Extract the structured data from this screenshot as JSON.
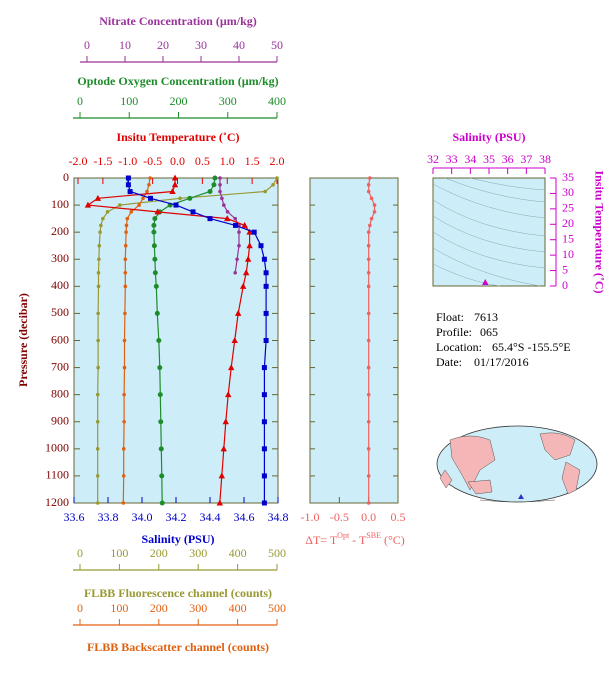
{
  "chart_data": [
    {
      "type": "line",
      "ylabel": "Pressure (decibar)",
      "ylim": [
        0,
        1200
      ],
      "yticks": [
        0,
        100,
        200,
        300,
        400,
        500,
        600,
        700,
        800,
        900,
        1000,
        1100,
        1200
      ],
      "y": [
        0,
        25,
        50,
        75,
        100,
        125,
        150,
        175,
        200,
        250,
        300,
        350,
        400,
        500,
        600,
        700,
        800,
        900,
        1000,
        1100,
        1200
      ],
      "x_axes": [
        {
          "label": "Nitrate Concentration (µm/kg)",
          "color": "#993399",
          "xlim": [
            0,
            50
          ],
          "xticks": [
            0,
            10,
            20,
            30,
            40,
            50
          ]
        },
        {
          "label": "Optode Oxygen Concentration (µm/kg)",
          "color": "#1e8c2a",
          "xlim": [
            0,
            400
          ],
          "xticks": [
            0,
            100,
            200,
            300,
            400
          ]
        },
        {
          "label": "Insitu Temperature (˚C)",
          "color": "#e00000",
          "xlim": [
            -2,
            2
          ],
          "xticks": [
            {
              "value": -2,
              "label": "-2.0"
            },
            -1.5,
            {
              "value": -1,
              "label": "-1.0"
            },
            -0.5,
            {
              "value": 0,
              "label": "0.0"
            },
            0.5,
            {
              "value": 1,
              "label": "1.0"
            },
            1.5,
            {
              "value": 2,
              "label": "2.0"
            }
          ]
        },
        {
          "label": "Salinity (PSU)",
          "color": "#0000cc",
          "xlim": [
            33.6,
            34.8
          ],
          "xticks": [
            33.6,
            33.8,
            {
              "value": 34,
              "label": "34.0"
            },
            34.2,
            34.4,
            34.6,
            34.8
          ]
        },
        {
          "label": "FLBB Fluorescence channel (counts)",
          "color": "#999933",
          "xlim": [
            0,
            500
          ],
          "xticks": [
            0,
            100,
            200,
            300,
            400,
            500
          ]
        },
        {
          "label": "FLBB Backscatter channel (counts)",
          "color": "#e06010",
          "xlim": [
            0,
            500
          ],
          "xticks": [
            0,
            100,
            200,
            300,
            400,
            500
          ]
        }
      ],
      "series": [
        {
          "axis": 4,
          "color": "#999933",
          "marker": "dot",
          "values": [
            500,
            490,
            470,
            254,
            101,
            70,
            58,
            53,
            51,
            49,
            48,
            47,
            47,
            46,
            46,
            46,
            45,
            45,
            45,
            45,
            45
          ]
        },
        {
          "axis": 5,
          "color": "#e06010",
          "marker": "dot",
          "values": [
            178,
            175,
            170,
            160,
            150,
            130,
            120,
            118,
            117,
            116,
            115,
            115,
            115,
            114,
            113,
            113,
            112,
            112,
            111,
            111,
            110
          ]
        },
        {
          "axis": 1,
          "color": "#1e8c2a",
          "marker": "circle",
          "values": [
            274,
            272,
            264,
            223,
            183,
            162,
            152,
            150,
            150,
            151,
            152,
            153,
            155,
            157,
            160,
            162,
            163,
            164,
            165,
            166,
            167
          ]
        },
        {
          "axis": 0,
          "color": "#993399",
          "marker": "dot",
          "values": [
            35,
            35,
            35,
            35.5,
            36,
            37,
            39,
            40,
            40,
            40,
            39.5,
            39,
            null,
            null,
            null,
            null,
            null,
            null,
            null,
            null,
            null
          ]
        },
        {
          "axis": 2,
          "color": "#e00000",
          "marker": "triangle",
          "values": [
            -0.05,
            -0.05,
            -0.1,
            -1.6,
            -1.8,
            -0.4,
            1.0,
            1.35,
            1.45,
            1.45,
            1.42,
            1.38,
            1.32,
            1.22,
            1.15,
            1.08,
            1.02,
            0.97,
            0.93,
            0.89,
            0.85
          ]
        },
        {
          "axis": 3,
          "color": "#0000cc",
          "marker": "square",
          "values": [
            33.92,
            33.92,
            33.93,
            34.05,
            34.2,
            34.3,
            34.4,
            34.55,
            34.66,
            34.7,
            34.72,
            34.73,
            34.73,
            34.73,
            34.73,
            34.72,
            34.72,
            34.72,
            34.72,
            34.72,
            34.72
          ]
        }
      ]
    },
    {
      "type": "line",
      "xlabel_parts": [
        "ΔT= T",
        "Opt",
        " - T",
        "SBE",
        " (°C)"
      ],
      "color": "#f06060",
      "xlim": [
        -1,
        0.5
      ],
      "xticks": [
        {
          "value": -1,
          "label": "-1.0"
        },
        -0.5,
        {
          "value": 0,
          "label": "0.0"
        },
        0.5
      ],
      "ylim": [
        0,
        1200
      ],
      "y": [
        0,
        25,
        50,
        75,
        100,
        125,
        150,
        175,
        200,
        250,
        300,
        350,
        400,
        500,
        600,
        700,
        800,
        900,
        1000,
        1100,
        1200
      ],
      "values": [
        0.02,
        0.0,
        0.0,
        0.05,
        0.1,
        0.1,
        0.05,
        0.02,
        0.0,
        0.0,
        0.0,
        0.0,
        0.0,
        0.0,
        0.0,
        0.0,
        0.0,
        0.0,
        0.0,
        0.0,
        0.0
      ]
    },
    {
      "type": "scatter",
      "xlabel": "Salinity (PSU)",
      "ylabel": "Insitu Temperature (˚C)",
      "color": "#cc00cc",
      "xlim": [
        32,
        38
      ],
      "xticks": [
        32,
        33,
        34,
        35,
        36,
        37,
        38
      ],
      "ylim": [
        0,
        35
      ],
      "yticks": [
        0,
        5,
        10,
        15,
        20,
        25,
        30,
        35
      ],
      "x": [
        34.8
      ],
      "values": [
        0.5
      ]
    }
  ],
  "info": [
    [
      "Float:",
      "7613"
    ],
    [
      "Profile:",
      "065"
    ],
    [
      "Location:",
      "65.4°S  -155.5°E"
    ],
    [
      "Date:",
      "01/17/2016"
    ]
  ]
}
